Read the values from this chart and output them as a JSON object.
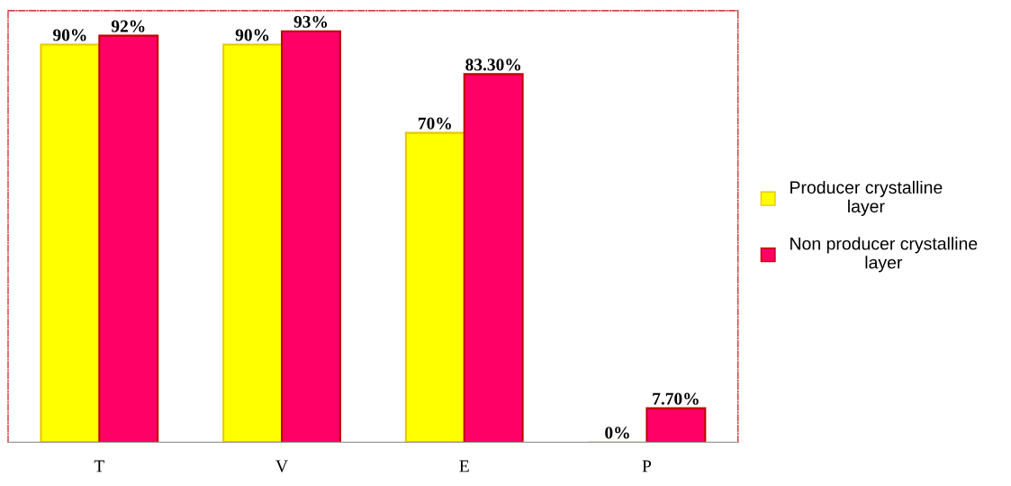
{
  "chart_data": {
    "type": "bar",
    "categories": [
      "T",
      "V",
      "E",
      "P"
    ],
    "series": [
      {
        "name": "Producer crystalline\nlayer",
        "color": "#ffff00",
        "values": [
          90,
          90,
          70,
          0
        ],
        "value_labels": [
          "90%",
          "90%",
          "70%",
          "0%"
        ]
      },
      {
        "name": "Non producer crystalline\nlayer",
        "color": "#ff0066",
        "values": [
          92,
          93,
          83.3,
          7.7
        ],
        "value_labels": [
          "92%",
          "93%",
          "83.30%",
          "7.70%"
        ]
      }
    ],
    "legend": "right",
    "grid": false
  }
}
